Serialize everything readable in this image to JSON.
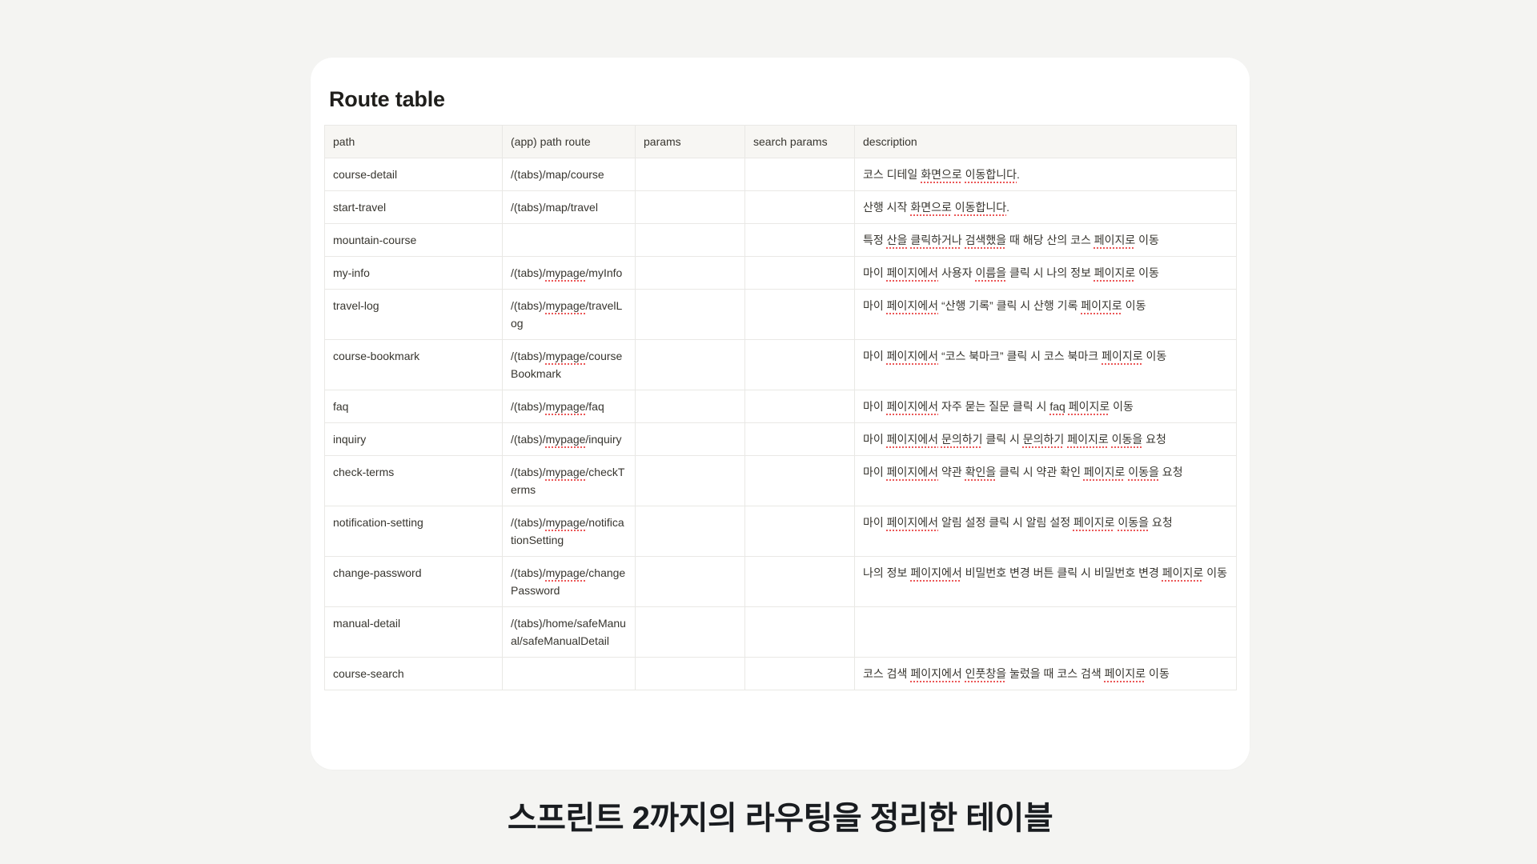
{
  "card": {
    "title": "Route table"
  },
  "table": {
    "columns": [
      {
        "key": "path",
        "label": "path"
      },
      {
        "key": "route",
        "label": "(app) path route"
      },
      {
        "key": "params",
        "label": "params"
      },
      {
        "key": "search_params",
        "label": "search params"
      },
      {
        "key": "description",
        "label": "description"
      }
    ],
    "rows": [
      {
        "path": "course-detail",
        "route": "/(tabs)/map/course",
        "route_marks": [],
        "params": "",
        "search_params": "",
        "description": "코스 디테일 화면으로 이동합니다.",
        "desc_marks": [
          "화면으로",
          "이동합니다"
        ]
      },
      {
        "path": "start-travel",
        "route": "/(tabs)/map/travel",
        "route_marks": [],
        "params": "",
        "search_params": "",
        "description": "산행 시작 화면으로 이동합니다.",
        "desc_marks": [
          "화면으로",
          "이동합니다"
        ]
      },
      {
        "path": "mountain-course",
        "route": "",
        "route_marks": [],
        "params": "",
        "search_params": "",
        "description": "특정 산을 클릭하거나 검색했을 때 해당 산의 코스 페이지로 이동",
        "desc_marks": [
          "산을",
          "클릭하거나",
          "검색했을",
          "페이지로"
        ]
      },
      {
        "path": "my-info",
        "route": "/(tabs)/mypage/myInfo",
        "route_marks": [
          "mypage"
        ],
        "params": "",
        "search_params": "",
        "description": "마이 페이지에서 사용자 이름을 클릭 시 나의 정보 페이지로 이동",
        "desc_marks": [
          "페이지에서",
          "이름을",
          "페이지로"
        ]
      },
      {
        "path": "travel-log",
        "route": "/(tabs)/mypage/travelLog",
        "route_marks": [
          "mypage"
        ],
        "params": "",
        "search_params": "",
        "description": "마이 페이지에서 “산행 기록” 클릭 시 산행 기록 페이지로 이동",
        "desc_marks": [
          "페이지에서",
          "페이지로"
        ]
      },
      {
        "path": "course-bookmark",
        "route": "/(tabs)/mypage/courseBookmark",
        "route_marks": [
          "mypage"
        ],
        "params": "",
        "search_params": "",
        "description": "마이 페이지에서 “코스 북마크” 클릭 시 코스 북마크 페이지로 이동",
        "desc_marks": [
          "페이지에서",
          "페이지로"
        ]
      },
      {
        "path": "faq",
        "route": "/(tabs)/mypage/faq",
        "route_marks": [
          "mypage"
        ],
        "params": "",
        "search_params": "",
        "description": "마이 페이지에서 자주 묻는 질문 클릭 시 faq 페이지로 이동",
        "desc_marks": [
          "페이지에서",
          "faq",
          "페이지로"
        ]
      },
      {
        "path": "inquiry",
        "route": "/(tabs)/mypage/inquiry",
        "route_marks": [
          "mypage"
        ],
        "params": "",
        "search_params": "",
        "description": "마이 페이지에서 문의하기 클릭 시 문의하기 페이지로 이동을 요청",
        "desc_marks": [
          "페이지에서",
          "문의하기",
          "페이지로",
          "이동을"
        ]
      },
      {
        "path": "check-terms",
        "route": "/(tabs)/mypage/checkTerms",
        "route_marks": [
          "mypage"
        ],
        "params": "",
        "search_params": "",
        "description": "마이 페이지에서 약관 확인을 클릭 시 약관 확인 페이지로 이동을 요청",
        "desc_marks": [
          "페이지에서",
          "확인을",
          "페이지로",
          "이동을"
        ]
      },
      {
        "path": "notification-setting",
        "route": "/(tabs)/mypage/notificationSetting",
        "route_marks": [
          "mypage"
        ],
        "params": "",
        "search_params": "",
        "description": "마이 페이지에서 알림 설정 클릭 시 알림 설정 페이지로 이동을 요청",
        "desc_marks": [
          "페이지에서",
          "페이지로",
          "이동을"
        ]
      },
      {
        "path": "change-password",
        "route": "/(tabs)/mypage/changePassword",
        "route_marks": [
          "mypage"
        ],
        "params": "",
        "search_params": "",
        "description": "나의 정보 페이지에서 비밀번호 변경 버튼 클릭 시 비밀번호 변경 페이지로 이동",
        "desc_marks": [
          "페이지에서",
          "페이지로"
        ]
      },
      {
        "path": "manual-detail",
        "route": "/(tabs)/home/safeManual/safeManualDetail",
        "route_marks": [],
        "params": "",
        "search_params": "",
        "description": "",
        "desc_marks": []
      },
      {
        "path": "course-search",
        "route": "",
        "route_marks": [],
        "params": "",
        "search_params": "",
        "description": "코스 검색 페이지에서 인풋창을 눌렀을 때 코스 검색 페이지로 이동",
        "desc_marks": [
          "페이지에서",
          "인풋창을",
          "페이지로"
        ]
      }
    ]
  },
  "caption": "스프린트 2까지의 라우팅을 정리한 테이블",
  "colors": {
    "page_background": "#f4f4f2",
    "card_background": "#ffffff",
    "table_border": "#e9e8e5",
    "header_background": "#f7f6f3",
    "body_text": "#37352f",
    "spellcheck_underline": "#eb5757",
    "caption_text": "#191c20"
  }
}
